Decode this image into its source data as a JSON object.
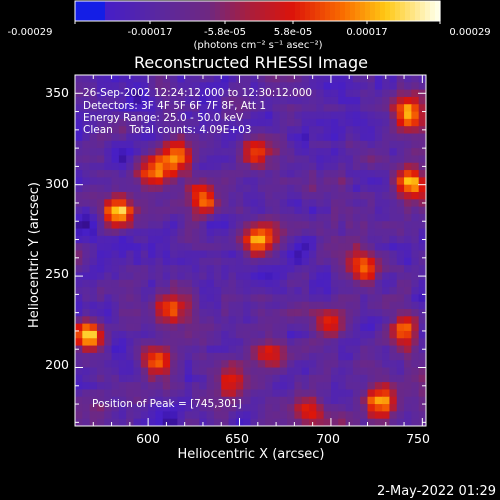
{
  "chart_data": {
    "type": "heatmap",
    "title": "Reconstructed RHESSI Image",
    "xlabel": "Heliocentric X (arcsec)",
    "ylabel": "Heliocentric Y (arcsec)",
    "xlim": [
      560,
      752
    ],
    "ylim": [
      168,
      360
    ],
    "xticks": [
      "600",
      "650",
      "700",
      "750"
    ],
    "yticks": [
      "200",
      "250",
      "300",
      "350"
    ],
    "colorbar": {
      "ticks": [
        "-0.00029",
        "-0.00017",
        "-5.8e-05",
        "5.8e-05",
        "0.00017",
        "0.00029"
      ],
      "range": [
        -0.00029,
        0.00029
      ],
      "label": "(photons cm⁻² s⁻¹ asec⁻²)"
    },
    "annotations": [
      "26-Sep-2002 12:24:12.000 to 12:30:12.000",
      "Detectors: 3F 4F 5F 6F 7F 8F, Att 1",
      "Energy Range: 25.0 - 50.0 keV",
      "Clean     Total counts: 4.09E+03"
    ],
    "peak_label": "Position of Peak = [745,301]",
    "peak": [
      745,
      301
    ],
    "hotspots": [
      {
        "x": 745,
        "y": 301,
        "v": 1.0
      },
      {
        "x": 630,
        "y": 294,
        "v": 0.75
      },
      {
        "x": 618,
        "y": 316,
        "v": 0.7
      },
      {
        "x": 585,
        "y": 285,
        "v": 0.85
      },
      {
        "x": 568,
        "y": 218,
        "v": 0.95
      },
      {
        "x": 605,
        "y": 308,
        "v": 0.8
      },
      {
        "x": 718,
        "y": 255,
        "v": 0.7
      },
      {
        "x": 740,
        "y": 220,
        "v": 0.8
      },
      {
        "x": 702,
        "y": 225,
        "v": 0.65
      },
      {
        "x": 662,
        "y": 270,
        "v": 0.9
      },
      {
        "x": 660,
        "y": 320,
        "v": 0.65
      },
      {
        "x": 690,
        "y": 176,
        "v": 0.55
      },
      {
        "x": 728,
        "y": 182,
        "v": 0.85
      },
      {
        "x": 605,
        "y": 205,
        "v": 0.6
      },
      {
        "x": 645,
        "y": 190,
        "v": 0.5
      },
      {
        "x": 612,
        "y": 232,
        "v": 0.6
      },
      {
        "x": 668,
        "y": 206,
        "v": 0.55
      },
      {
        "x": 742,
        "y": 340,
        "v": 0.8
      }
    ]
  },
  "timestamp": "2-May-2022 01:29"
}
